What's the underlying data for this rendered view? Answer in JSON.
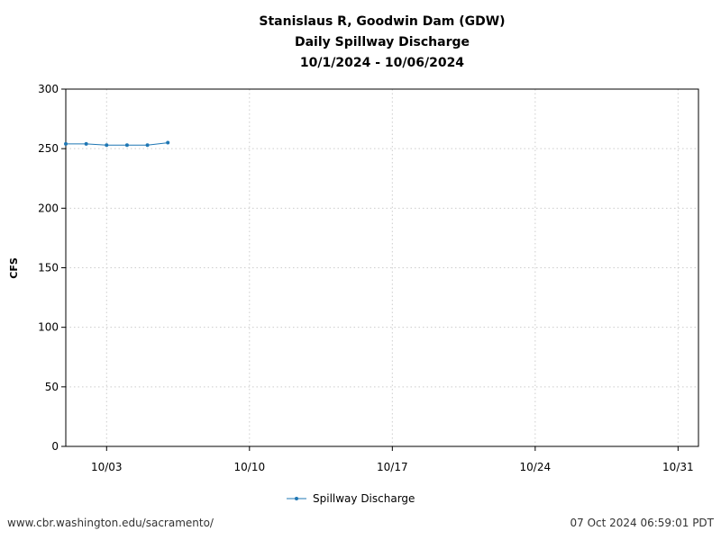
{
  "chart_data": {
    "type": "line",
    "title_lines": [
      "Stanislaus R, Goodwin Dam (GDW)",
      "Daily Spillway Discharge",
      "10/1/2024 - 10/06/2024"
    ],
    "ylabel": "CFS",
    "xlabel": "",
    "ylim": [
      0,
      300
    ],
    "yticks": [
      0,
      50,
      100,
      150,
      200,
      250,
      300
    ],
    "xlim": [
      "2024-10-01",
      "2024-11-01"
    ],
    "xticks": [
      {
        "date": "2024-10-03",
        "label": "10/03"
      },
      {
        "date": "2024-10-10",
        "label": "10/10"
      },
      {
        "date": "2024-10-17",
        "label": "10/17"
      },
      {
        "date": "2024-10-24",
        "label": "10/24"
      },
      {
        "date": "2024-10-31",
        "label": "10/31"
      }
    ],
    "grid": true,
    "legend_position": "bottom-center",
    "series": [
      {
        "name": "Spillway Discharge",
        "color": "#1f77b4",
        "x": [
          "2024-10-01",
          "2024-10-02",
          "2024-10-03",
          "2024-10-04",
          "2024-10-05",
          "2024-10-06"
        ],
        "y": [
          254,
          254,
          253,
          253,
          253,
          255
        ]
      }
    ]
  },
  "footer": {
    "source_url": "www.cbr.washington.edu/sacramento/",
    "timestamp": "07 Oct 2024 06:59:01 PDT"
  }
}
